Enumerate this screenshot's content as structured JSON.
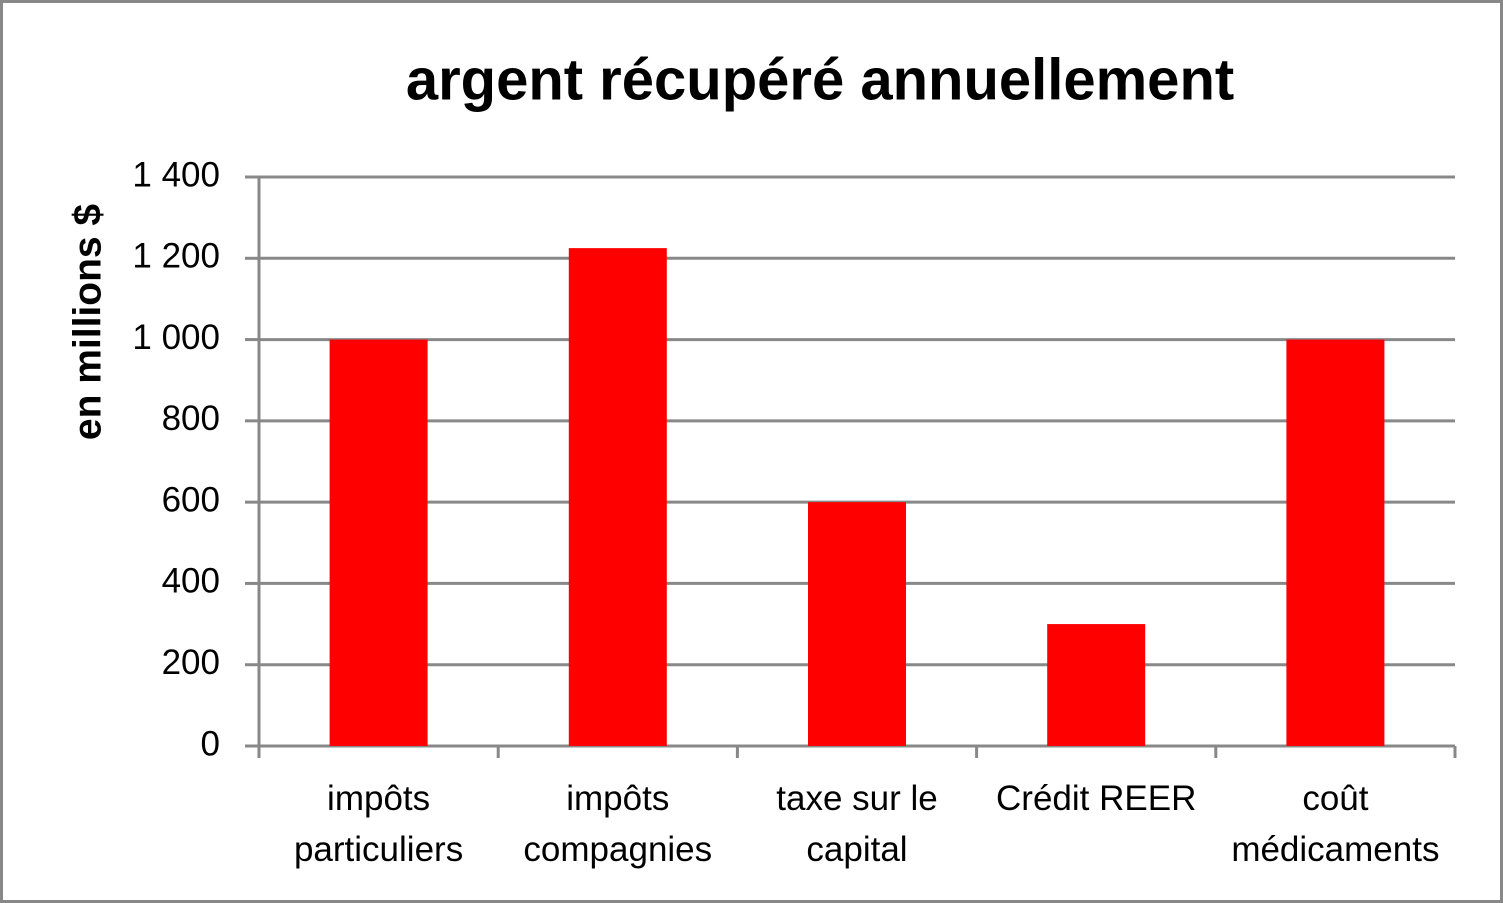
{
  "chart_data": {
    "type": "bar",
    "title": "argent récupéré annuellement",
    "y_label": "en millions $",
    "categories": [
      "impôts particuliers",
      "impôts compagnies",
      "taxe sur le capital",
      "Crédit REER",
      "coût médicaments"
    ],
    "values": [
      1000,
      1225,
      600,
      300,
      1000
    ],
    "color": "#ff0000",
    "ylim": [
      0,
      1400
    ],
    "yticks": [
      0,
      200,
      400,
      600,
      800,
      {
        "value": 1000,
        "label": "1 000"
      },
      {
        "value": 1200,
        "label": "1 200"
      },
      {
        "value": 1400,
        "label": "1 400"
      }
    ],
    "grid": true
  }
}
